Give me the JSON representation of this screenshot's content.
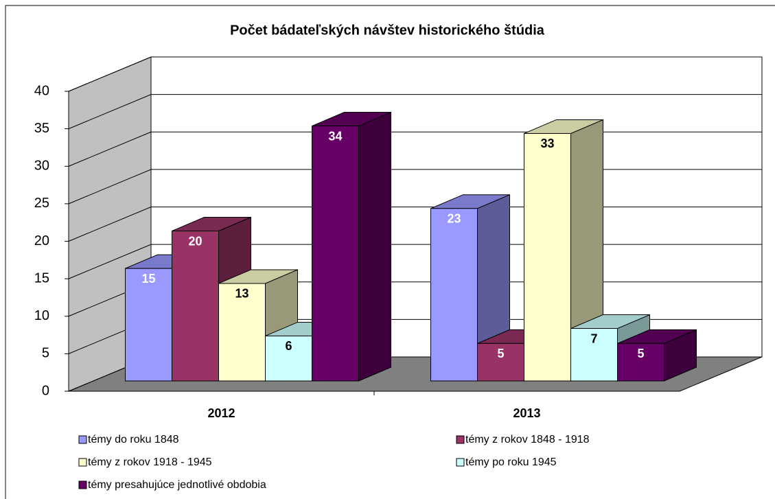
{
  "chart_data": {
    "type": "bar3d",
    "title": "Počet bádateľských návštev historického štúdia",
    "categories": [
      "2012",
      "2013"
    ],
    "series": [
      {
        "name": "témy do roku 1848",
        "color": "#9999ff",
        "values": [
          15,
          23
        ]
      },
      {
        "name": "témy z rokov 1848 - 1918",
        "color": "#993366",
        "values": [
          20,
          5
        ]
      },
      {
        "name": "témy z rokov 1918 - 1945",
        "color": "#ffffcc",
        "values": [
          13,
          33
        ]
      },
      {
        "name": "témy po roku 1945",
        "color": "#ccffff",
        "values": [
          6,
          7
        ]
      },
      {
        "name": "témy presahujúce jednotlivé obdobia",
        "color": "#660066",
        "values": [
          34,
          5
        ]
      }
    ],
    "ylim": [
      0,
      40
    ],
    "yticks": [
      0,
      5,
      10,
      15,
      20,
      25,
      30,
      35,
      40
    ],
    "grid": true
  }
}
